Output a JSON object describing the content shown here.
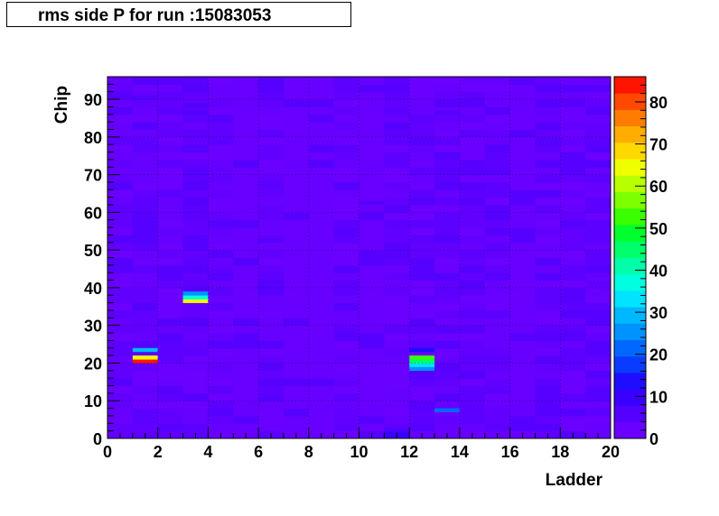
{
  "chart_data": {
    "type": "heatmap",
    "title": "rms side P for run :15083053",
    "xlabel": "Ladder",
    "ylabel": "Chip",
    "xlim": [
      0,
      20
    ],
    "ylim": [
      0,
      96
    ],
    "x_ticks": [
      "0",
      "2",
      "4",
      "6",
      "8",
      "10",
      "12",
      "14",
      "16",
      "18",
      "20"
    ],
    "y_ticks": [
      "0",
      "10",
      "20",
      "30",
      "40",
      "50",
      "60",
      "70",
      "80",
      "90"
    ],
    "colorbar": {
      "min": 0,
      "max": 86,
      "ticks": [
        "0",
        "10",
        "20",
        "30",
        "40",
        "50",
        "60",
        "70",
        "80"
      ]
    },
    "background_value": 3,
    "cells": [
      {
        "x": 1,
        "y": 20,
        "v": 86
      },
      {
        "x": 1,
        "y": 21,
        "v": 66
      },
      {
        "x": 1,
        "y": 23,
        "v": 28
      },
      {
        "x": 3,
        "y": 36,
        "v": 66
      },
      {
        "x": 3,
        "y": 37,
        "v": 38
      },
      {
        "x": 3,
        "y": 38,
        "v": 26
      },
      {
        "x": 12,
        "y": 18,
        "v": 26
      },
      {
        "x": 12,
        "y": 19,
        "v": 34
      },
      {
        "x": 12,
        "y": 20,
        "v": 46
      },
      {
        "x": 12,
        "y": 21,
        "v": 52
      },
      {
        "x": 12,
        "y": 23,
        "v": 14
      },
      {
        "x": 13,
        "y": 7,
        "v": 20
      },
      {
        "x": 11,
        "y": 0,
        "v": 10
      },
      {
        "x": 11,
        "y": 1,
        "v": 10
      },
      {
        "x": 11,
        "y": 2,
        "v": 6
      },
      {
        "x": 1,
        "y": 90,
        "v": 6
      },
      {
        "x": 3,
        "y": 88,
        "v": 7
      },
      {
        "x": 3,
        "y": 86,
        "v": 6
      },
      {
        "x": 6,
        "y": 52,
        "v": 7
      },
      {
        "x": 10,
        "y": 62,
        "v": 6
      },
      {
        "x": 13,
        "y": 86,
        "v": 6
      }
    ]
  }
}
